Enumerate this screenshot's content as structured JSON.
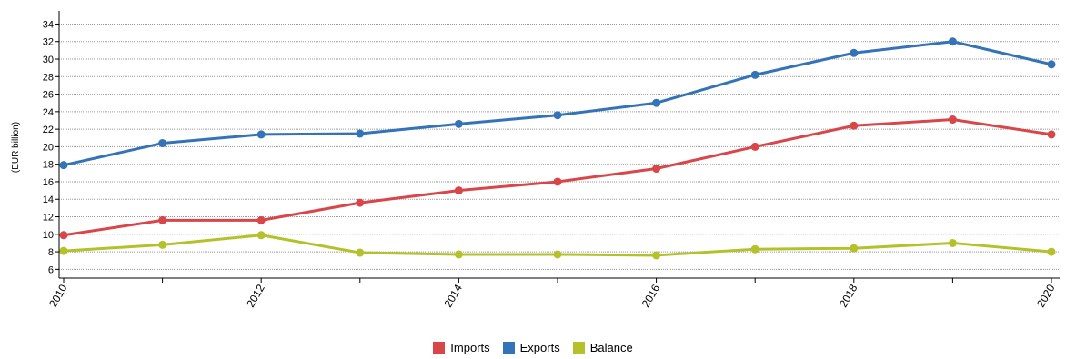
{
  "chart_data": {
    "type": "line",
    "ylabel": "(EUR billion)",
    "xlabel": "",
    "x": [
      2010,
      2011,
      2012,
      2013,
      2014,
      2015,
      2016,
      2017,
      2018,
      2019,
      2020
    ],
    "x_tick_labels": [
      "2010",
      "2012",
      "2014",
      "2016",
      "2018",
      "2020"
    ],
    "ylim": [
      5,
      35.5
    ],
    "y_ticks": [
      6,
      8,
      10,
      12,
      14,
      16,
      18,
      20,
      22,
      24,
      26,
      28,
      30,
      32,
      34
    ],
    "grid": true,
    "legend_position": "bottom-center",
    "series": [
      {
        "name": "Imports",
        "color": "#d9464a",
        "values": [
          9.9,
          11.6,
          11.6,
          13.6,
          15.0,
          16.0,
          17.5,
          20.0,
          22.4,
          23.1,
          21.4
        ]
      },
      {
        "name": "Exports",
        "color": "#3473b8",
        "values": [
          17.9,
          20.4,
          21.4,
          21.5,
          22.6,
          23.6,
          25.0,
          28.2,
          30.7,
          32.0,
          29.4
        ]
      },
      {
        "name": "Balance",
        "color": "#b5c12a",
        "values": [
          8.1,
          8.8,
          9.9,
          7.9,
          7.7,
          7.7,
          7.6,
          8.3,
          8.4,
          9.0,
          8.0
        ]
      }
    ]
  }
}
